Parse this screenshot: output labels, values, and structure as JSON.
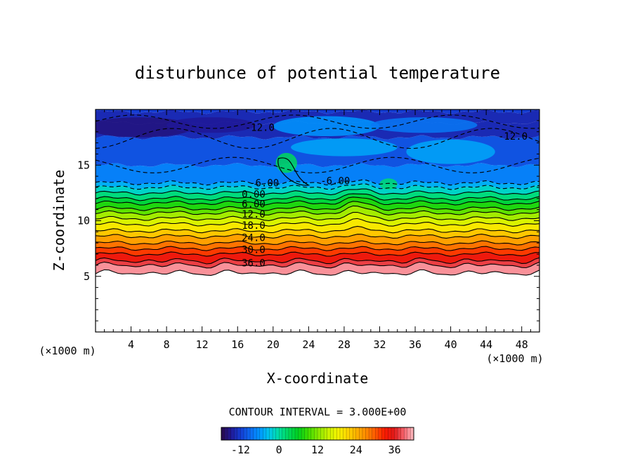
{
  "chart_data": {
    "type": "heatmap",
    "title": "disturbunce of potential temperature",
    "xlabel": "X-coordinate",
    "ylabel": "Z-coordinate",
    "x_unit_left": "(×1000 m)",
    "x_unit_right": "(×1000 m)",
    "xlim": [
      0,
      50
    ],
    "ylim": [
      0,
      20
    ],
    "x_ticks": [
      4,
      8,
      12,
      16,
      20,
      24,
      28,
      32,
      36,
      40,
      44,
      48
    ],
    "y_ticks": [
      5,
      10,
      15
    ],
    "contour_interval_label": "CONTOUR INTERVAL = 3.000E+00",
    "contour_interval": 3.0,
    "colorbar": {
      "min": -18,
      "max": 42,
      "ticks": [
        -12,
        0,
        12,
        24,
        36
      ],
      "tick_labels": [
        "-12",
        "0",
        "12",
        "24",
        "36"
      ]
    },
    "contour_labels": [
      {
        "text": "-12.0",
        "x": 18.5,
        "z": 18.4
      },
      {
        "text": "-12.0",
        "x": 47.0,
        "z": 17.6
      },
      {
        "text": "-6.00",
        "x": 19.0,
        "z": 13.4
      },
      {
        "text": "-6.00",
        "x": 27.0,
        "z": 13.6
      },
      {
        "text": "0.00",
        "x": 17.8,
        "z": 12.4
      },
      {
        "text": "6.00",
        "x": 17.8,
        "z": 11.5
      },
      {
        "text": "12.0",
        "x": 17.8,
        "z": 10.6
      },
      {
        "text": "18.0",
        "x": 17.8,
        "z": 9.6
      },
      {
        "text": "24.0",
        "x": 17.8,
        "z": 8.5
      },
      {
        "text": "30.0",
        "x": 17.8,
        "z": 7.4
      },
      {
        "text": "36.0",
        "x": 17.8,
        "z": 6.2
      }
    ],
    "profile": [
      {
        "z": 5.3,
        "value": 42
      },
      {
        "z": 6.0,
        "value": 39
      },
      {
        "z": 6.4,
        "value": 36
      },
      {
        "z": 7.0,
        "value": 33
      },
      {
        "z": 7.5,
        "value": 30
      },
      {
        "z": 8.0,
        "value": 27
      },
      {
        "z": 8.6,
        "value": 24
      },
      {
        "z": 9.1,
        "value": 21
      },
      {
        "z": 9.7,
        "value": 18
      },
      {
        "z": 10.2,
        "value": 15
      },
      {
        "z": 10.7,
        "value": 12
      },
      {
        "z": 11.1,
        "value": 9
      },
      {
        "z": 11.6,
        "value": 6
      },
      {
        "z": 12.0,
        "value": 3
      },
      {
        "z": 12.5,
        "value": 0
      },
      {
        "z": 13.0,
        "value": -3
      },
      {
        "z": 13.4,
        "value": -6
      },
      {
        "z": 15.0,
        "value": -9
      },
      {
        "z": 17.5,
        "value": -12
      },
      {
        "z": 18.8,
        "value": -15
      },
      {
        "z": 19.8,
        "value": -12
      }
    ]
  }
}
